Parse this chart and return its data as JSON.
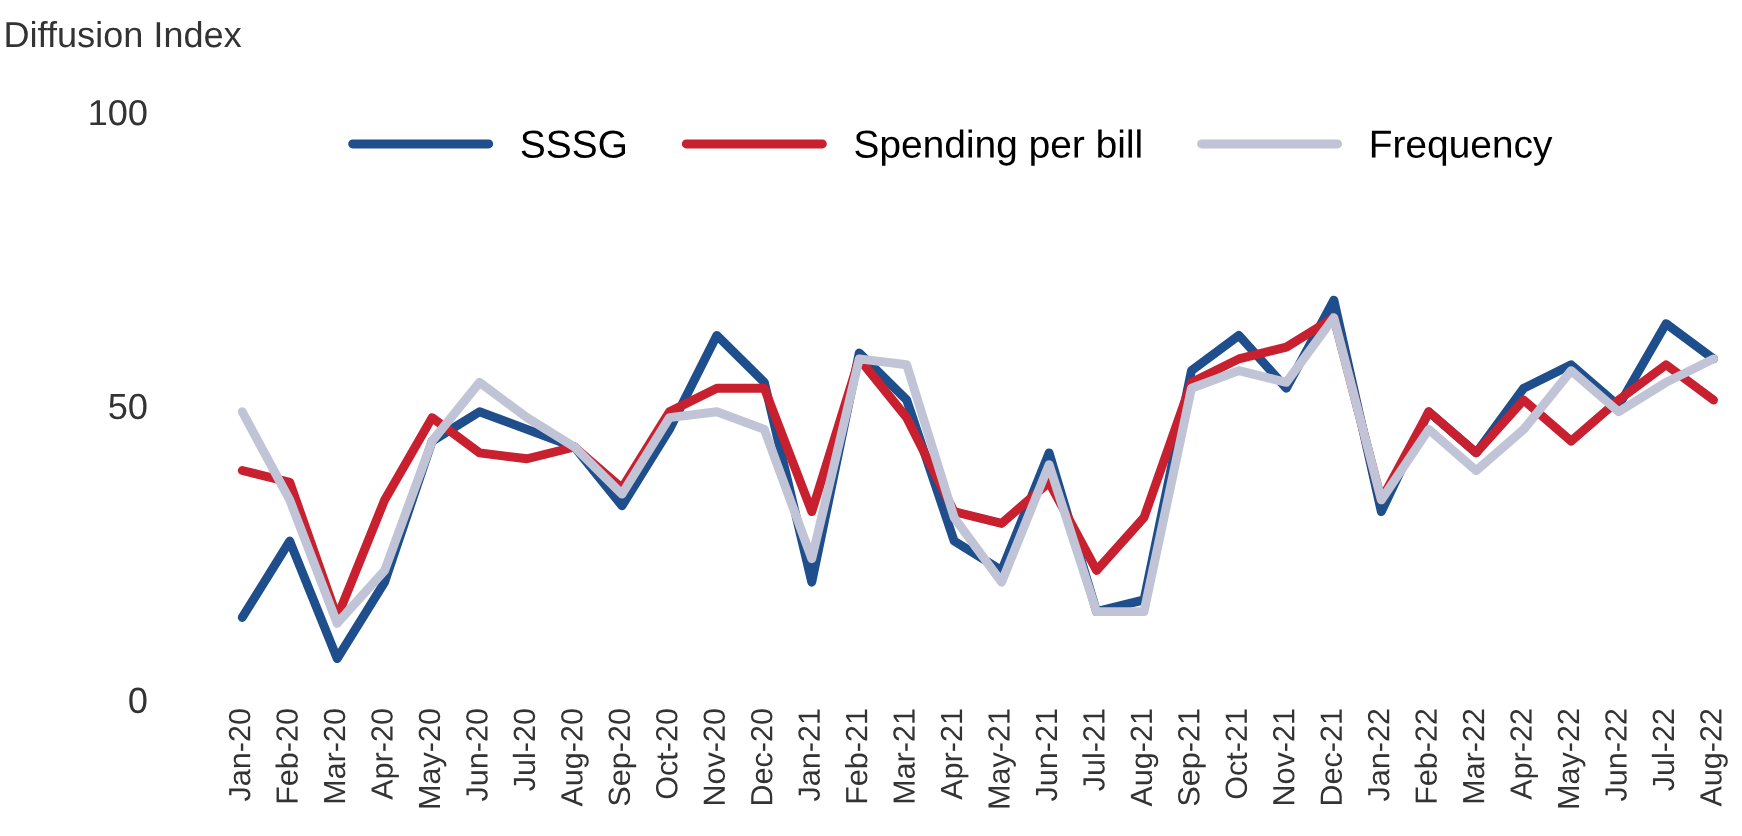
{
  "chart_data": {
    "type": "line",
    "ylabel": "Diffusion Index",
    "categories": [
      "Jan-20",
      "Feb-20",
      "Mar-20",
      "Apr-20",
      "May-20",
      "Jun-20",
      "Jul-20",
      "Aug-20",
      "Sep-20",
      "Oct-20",
      "Nov-20",
      "Dec-20",
      "Jan-21",
      "Feb-21",
      "Mar-21",
      "Apr-21",
      "May-21",
      "Jun-21",
      "Jul-21",
      "Aug-21",
      "Sep-21",
      "Oct-21",
      "Nov-21",
      "Dec-21",
      "Jan-22",
      "Feb-22",
      "Mar-22",
      "Apr-22",
      "May-22",
      "Jun-22",
      "Jul-22",
      "Aug-22"
    ],
    "series": [
      {
        "name": "SSSG",
        "color": "#1f4e8c",
        "values": [
          14,
          27,
          7,
          20,
          44,
          49,
          46,
          43,
          33,
          46,
          62,
          54,
          20,
          59,
          51,
          27,
          22,
          42,
          15,
          17,
          56,
          62,
          53,
          68,
          32,
          49,
          42,
          53,
          57,
          50,
          64,
          58
        ]
      },
      {
        "name": "Spending per bill",
        "color": "#c8202f",
        "values": [
          39,
          37,
          14,
          34,
          48,
          42,
          41,
          43,
          36,
          49,
          53,
          53,
          32,
          58,
          48,
          32,
          30,
          37,
          22,
          31,
          54,
          58,
          60,
          65,
          34,
          49,
          42,
          51,
          44,
          51,
          57,
          51
        ]
      },
      {
        "name": "Frequency",
        "color": "#c0c4d6",
        "values": [
          49,
          34,
          13,
          22,
          44,
          54,
          48,
          43,
          35,
          48,
          49,
          46,
          24,
          58,
          57,
          31,
          20,
          40,
          15,
          15,
          53,
          56,
          54,
          65,
          34,
          46,
          39,
          46,
          56,
          49,
          54,
          58
        ]
      }
    ],
    "ylim": [
      0,
      100
    ],
    "yticks": [
      0,
      50,
      100
    ],
    "grid": false,
    "legend": "top",
    "marker": "none",
    "line_style": "solid"
  }
}
